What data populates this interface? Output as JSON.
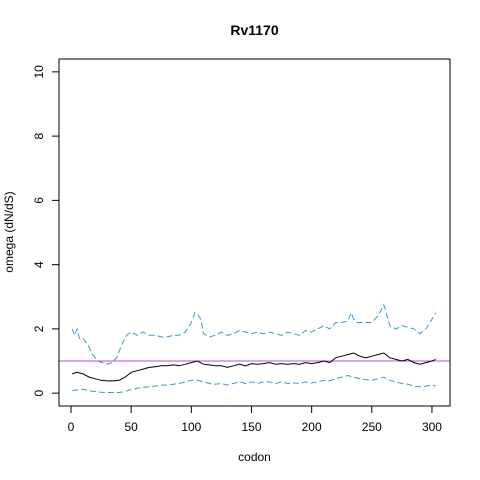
{
  "chart_data": {
    "type": "line",
    "title": "Rv1170",
    "xlabel": "codon",
    "ylabel": "omega (dN/dS)",
    "xlim": [
      -10,
      315
    ],
    "ylim": [
      -0.4,
      10.4
    ],
    "x_ticks": [
      0,
      50,
      100,
      150,
      200,
      250,
      300
    ],
    "y_ticks": [
      0,
      2,
      4,
      6,
      8,
      10
    ],
    "reference_line": {
      "y": 1,
      "color": "#cc44cc"
    },
    "series": [
      {
        "role": "upper",
        "style": "dashed",
        "color": "#3399dd",
        "x": [
          1,
          3,
          5,
          7,
          10,
          14,
          18,
          22,
          26,
          30,
          34,
          38,
          42,
          46,
          50,
          55,
          60,
          65,
          70,
          75,
          80,
          85,
          90,
          95,
          100,
          103,
          105,
          108,
          110,
          115,
          120,
          125,
          130,
          135,
          140,
          145,
          150,
          155,
          160,
          165,
          170,
          175,
          180,
          185,
          190,
          195,
          200,
          205,
          210,
          215,
          220,
          225,
          230,
          233,
          235,
          238,
          240,
          245,
          250,
          255,
          258,
          260,
          262,
          265,
          270,
          275,
          280,
          285,
          290,
          295,
          300,
          303
        ],
        "y": [
          2.0,
          1.8,
          2.0,
          1.7,
          1.7,
          1.5,
          1.2,
          1.0,
          0.95,
          0.9,
          0.95,
          1.1,
          1.5,
          1.8,
          1.9,
          1.8,
          1.9,
          1.8,
          1.8,
          1.75,
          1.75,
          1.8,
          1.8,
          1.9,
          2.2,
          2.5,
          2.45,
          2.3,
          1.85,
          1.75,
          1.8,
          1.9,
          1.8,
          1.85,
          1.95,
          1.9,
          1.85,
          1.9,
          1.85,
          1.9,
          1.85,
          1.8,
          1.9,
          1.85,
          1.8,
          1.95,
          1.9,
          2.0,
          2.1,
          2.0,
          2.2,
          2.2,
          2.25,
          2.5,
          2.3,
          2.2,
          2.2,
          2.2,
          2.2,
          2.4,
          2.6,
          2.75,
          2.5,
          2.1,
          2.0,
          2.1,
          2.05,
          2.0,
          1.85,
          2.0,
          2.3,
          2.5
        ]
      },
      {
        "role": "estimate",
        "style": "solid",
        "color": "#000000",
        "x": [
          1,
          5,
          10,
          15,
          20,
          25,
          30,
          35,
          40,
          45,
          50,
          55,
          60,
          65,
          70,
          75,
          80,
          85,
          90,
          95,
          100,
          105,
          110,
          115,
          120,
          125,
          130,
          135,
          140,
          145,
          150,
          155,
          160,
          165,
          170,
          175,
          180,
          185,
          190,
          195,
          200,
          205,
          210,
          215,
          220,
          225,
          230,
          235,
          240,
          245,
          250,
          255,
          260,
          265,
          270,
          275,
          280,
          285,
          290,
          295,
          300,
          303
        ],
        "y": [
          0.6,
          0.65,
          0.6,
          0.5,
          0.45,
          0.4,
          0.38,
          0.38,
          0.4,
          0.5,
          0.65,
          0.7,
          0.75,
          0.8,
          0.82,
          0.85,
          0.85,
          0.88,
          0.85,
          0.9,
          0.95,
          1.0,
          0.9,
          0.88,
          0.85,
          0.85,
          0.8,
          0.85,
          0.9,
          0.85,
          0.92,
          0.9,
          0.92,
          0.95,
          0.9,
          0.92,
          0.9,
          0.92,
          0.9,
          0.95,
          0.92,
          0.95,
          1.0,
          0.95,
          1.1,
          1.15,
          1.2,
          1.25,
          1.15,
          1.1,
          1.15,
          1.2,
          1.25,
          1.1,
          1.05,
          1.0,
          1.05,
          0.95,
          0.9,
          0.95,
          1.0,
          1.05
        ]
      },
      {
        "role": "lower",
        "style": "dashed",
        "color": "#3399dd",
        "x": [
          1,
          5,
          10,
          15,
          20,
          25,
          30,
          35,
          40,
          45,
          50,
          55,
          60,
          65,
          70,
          75,
          80,
          85,
          90,
          95,
          100,
          105,
          110,
          115,
          120,
          125,
          130,
          135,
          140,
          145,
          150,
          155,
          160,
          165,
          170,
          175,
          180,
          185,
          190,
          195,
          200,
          205,
          210,
          215,
          220,
          225,
          230,
          235,
          240,
          245,
          250,
          255,
          260,
          265,
          270,
          275,
          280,
          285,
          290,
          295,
          300,
          303
        ],
        "y": [
          0.08,
          0.1,
          0.12,
          0.08,
          0.05,
          0.03,
          0.02,
          0.02,
          0.02,
          0.05,
          0.12,
          0.15,
          0.18,
          0.2,
          0.22,
          0.25,
          0.25,
          0.28,
          0.3,
          0.35,
          0.4,
          0.4,
          0.35,
          0.3,
          0.28,
          0.3,
          0.25,
          0.3,
          0.35,
          0.3,
          0.35,
          0.3,
          0.35,
          0.35,
          0.3,
          0.35,
          0.3,
          0.32,
          0.3,
          0.35,
          0.32,
          0.35,
          0.4,
          0.38,
          0.45,
          0.5,
          0.55,
          0.5,
          0.45,
          0.42,
          0.4,
          0.45,
          0.5,
          0.4,
          0.35,
          0.3,
          0.28,
          0.22,
          0.2,
          0.22,
          0.25,
          0.22
        ]
      }
    ]
  }
}
